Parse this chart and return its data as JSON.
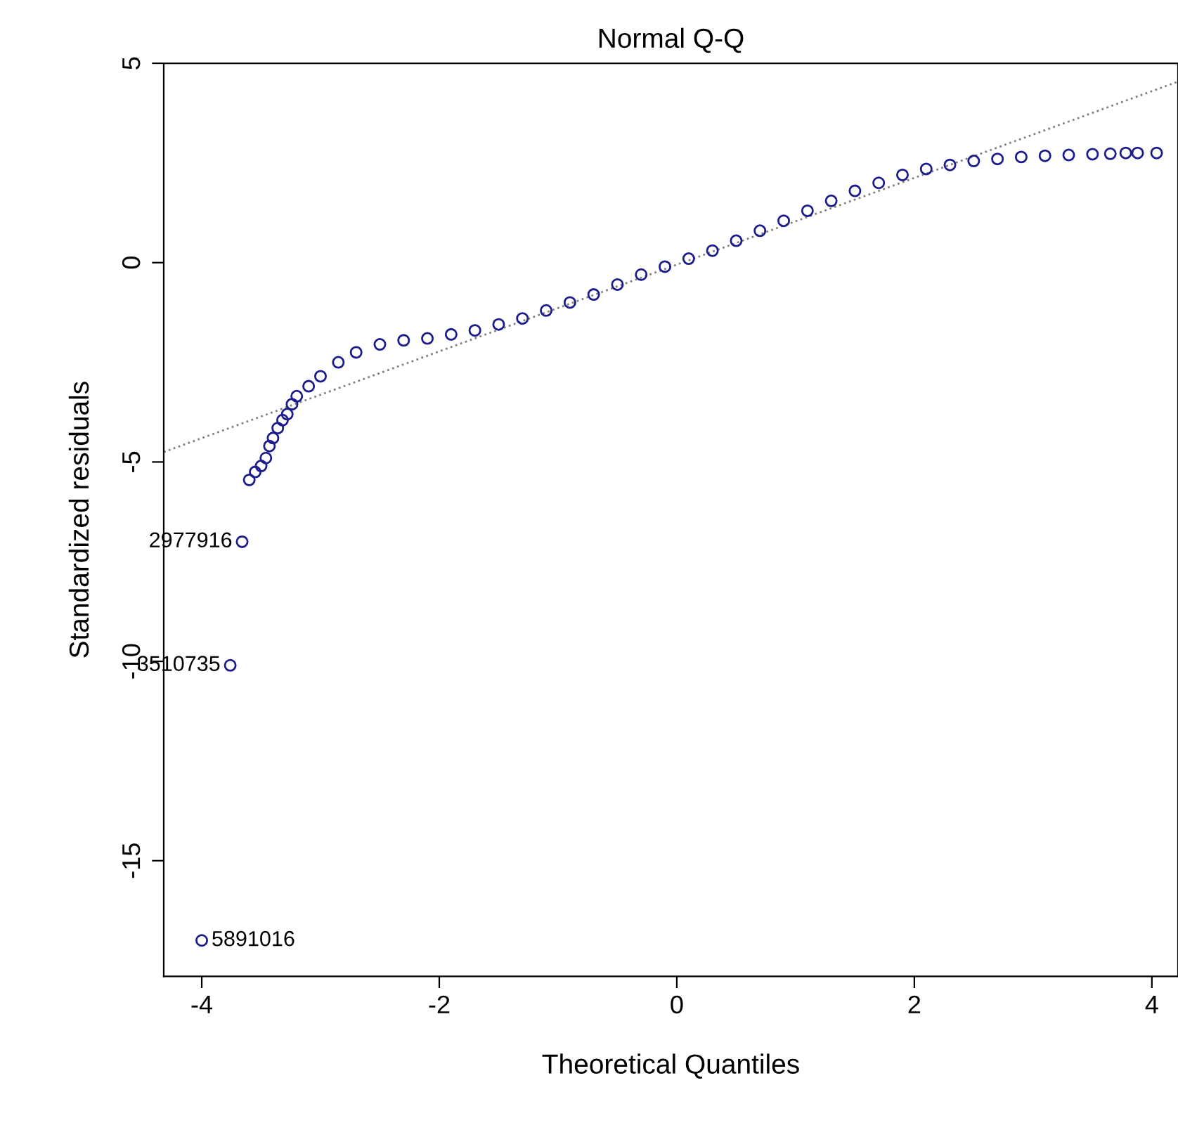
{
  "chart_data": {
    "type": "scatter",
    "title": "Normal Q-Q",
    "xlabel": "Theoretical Quantiles",
    "ylabel": "Standardized residuals",
    "xlim": [
      -4.32,
      4.22
    ],
    "ylim": [
      -17.9,
      5.0
    ],
    "xticks": [
      -4,
      -2,
      0,
      2,
      4
    ],
    "yticks": [
      -15,
      -10,
      -5,
      0,
      5
    ],
    "grid": false,
    "series": [
      {
        "marker": "circle",
        "color": "#1c1c8c",
        "x": [
          -4.0,
          -3.76,
          -3.66,
          -3.6,
          -3.55,
          -3.5,
          -3.46,
          -3.43,
          -3.4,
          -3.36,
          -3.32,
          -3.28,
          -3.24,
          -3.2,
          -3.1,
          -3.0,
          -2.85,
          -2.7,
          -2.5,
          -2.3,
          -2.1,
          -1.9,
          -1.7,
          -1.5,
          -1.3,
          -1.1,
          -0.9,
          -0.7,
          -0.5,
          -0.3,
          -0.1,
          0.1,
          0.3,
          0.5,
          0.7,
          0.9,
          1.1,
          1.3,
          1.5,
          1.7,
          1.9,
          2.1,
          2.3,
          2.5,
          2.7,
          2.9,
          3.1,
          3.3,
          3.5,
          3.65,
          3.78,
          3.88,
          4.04
        ],
        "values": [
          -17.0,
          -10.1,
          -7.0,
          -5.45,
          -5.25,
          -5.1,
          -4.9,
          -4.6,
          -4.4,
          -4.15,
          -3.95,
          -3.8,
          -3.55,
          -3.35,
          -3.1,
          -2.85,
          -2.5,
          -2.25,
          -2.05,
          -1.95,
          -1.9,
          -1.8,
          -1.7,
          -1.55,
          -1.4,
          -1.2,
          -1.0,
          -0.8,
          -0.55,
          -0.3,
          -0.1,
          0.1,
          0.3,
          0.55,
          0.8,
          1.05,
          1.3,
          1.55,
          1.8,
          2.0,
          2.2,
          2.35,
          2.45,
          2.55,
          2.6,
          2.65,
          2.68,
          2.7,
          2.72,
          2.73,
          2.75,
          2.75,
          2.75
        ]
      },
      {
        "type": "line",
        "color": "#808080",
        "line_style": "dotted",
        "x": [
          -4.32,
          4.22
        ],
        "values": [
          -4.75,
          4.54
        ]
      }
    ],
    "annotations": [
      {
        "text": "5891016",
        "x": -4.0,
        "y": -17.0
      },
      {
        "text": "3510735",
        "x": -3.76,
        "y": -10.1
      },
      {
        "text": "2977916",
        "x": -3.66,
        "y": -7.0
      }
    ]
  }
}
